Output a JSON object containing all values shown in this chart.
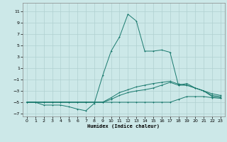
{
  "xlabel": "Humidex (Indice chaleur)",
  "background_color": "#cce8e8",
  "grid_color": "#b0d0d0",
  "line_color": "#1a7a6e",
  "xlim": [
    -0.5,
    23.5
  ],
  "ylim": [
    -7.5,
    12.5
  ],
  "xticks": [
    0,
    1,
    2,
    3,
    4,
    5,
    6,
    7,
    8,
    9,
    10,
    11,
    12,
    13,
    14,
    15,
    16,
    17,
    18,
    19,
    20,
    21,
    22,
    23
  ],
  "yticks": [
    -7,
    -5,
    -3,
    -1,
    1,
    3,
    5,
    7,
    9,
    11
  ],
  "line1_x": [
    0,
    1,
    2,
    3,
    4,
    5,
    6,
    7,
    8,
    9,
    10,
    11,
    12,
    13,
    14,
    15,
    16,
    17,
    18,
    19,
    20,
    21,
    22,
    23
  ],
  "line1_y": [
    -5,
    -5,
    -5.5,
    -5.5,
    -5.5,
    -5.8,
    -6.2,
    -6.5,
    -5.2,
    -0.3,
    4,
    6.5,
    10.5,
    9.3,
    4,
    4,
    4.2,
    3.8,
    -2,
    -1.7,
    -2.5,
    -3,
    -4,
    -4.2
  ],
  "line2_x": [
    0,
    1,
    2,
    3,
    4,
    5,
    6,
    7,
    8,
    9,
    10,
    11,
    12,
    13,
    14,
    15,
    16,
    17,
    18,
    19,
    20,
    21,
    22,
    23
  ],
  "line2_y": [
    -5,
    -5,
    -5,
    -5,
    -5,
    -5,
    -5,
    -5,
    -5,
    -5,
    -5,
    -5,
    -5,
    -5,
    -5,
    -5,
    -5,
    -5,
    -4.5,
    -4,
    -4,
    -4,
    -4.2,
    -4.3
  ],
  "line3_x": [
    0,
    1,
    2,
    3,
    4,
    5,
    6,
    7,
    8,
    9,
    10,
    11,
    12,
    13,
    14,
    15,
    16,
    17,
    18,
    19,
    20,
    21,
    22,
    23
  ],
  "line3_y": [
    -5,
    -5,
    -5,
    -5,
    -5,
    -5,
    -5,
    -5,
    -5,
    -5,
    -4.5,
    -3.8,
    -3.3,
    -3,
    -2.8,
    -2.5,
    -2,
    -1.5,
    -2,
    -2,
    -2.5,
    -3,
    -3.8,
    -4
  ],
  "line4_x": [
    0,
    1,
    2,
    3,
    4,
    5,
    6,
    7,
    8,
    9,
    10,
    11,
    12,
    13,
    14,
    15,
    16,
    17,
    18,
    19,
    20,
    21,
    22,
    23
  ],
  "line4_y": [
    -5,
    -5,
    -5,
    -5,
    -5,
    -5,
    -5,
    -5,
    -5,
    -5,
    -4.2,
    -3.3,
    -2.8,
    -2.3,
    -2,
    -1.7,
    -1.5,
    -1.3,
    -1.8,
    -2,
    -2.5,
    -3,
    -3.5,
    -3.8
  ]
}
